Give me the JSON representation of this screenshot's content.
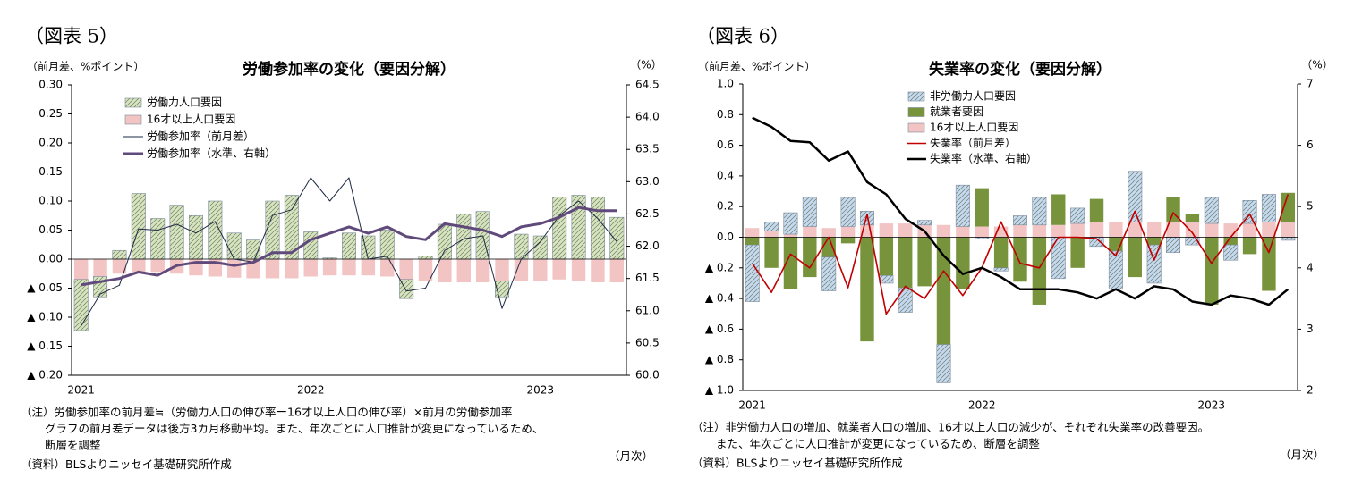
{
  "chart_data": [
    {
      "type": "combo",
      "figure_label": "（図表 5）",
      "title": "労働参加率の変化（要因分解）",
      "y_unit": "（前月差、%ポイント）",
      "y2_unit": "（%）",
      "x_unit": "（月次）",
      "notes": [
        "（注）労働参加率の前月差≒（労働力人口の伸び率ー16才以上人口の伸び率）×前月の労働参加率",
        "グラフの前月差データは後方3カ月移動平均。また、年次ごとに人口推計が変更になっているため、",
        "断層を調整"
      ],
      "source": "（資料）BLSよりニッセイ基礎研究所作成",
      "categories": [
        "2021",
        null,
        null,
        null,
        null,
        null,
        null,
        null,
        null,
        null,
        null,
        null,
        "2022",
        null,
        null,
        null,
        null,
        null,
        null,
        null,
        null,
        null,
        null,
        null,
        "2023",
        null,
        null,
        null,
        null
      ],
      "ylim": [
        -0.2,
        0.3
      ],
      "yticks": [
        {
          "value": 0.3,
          "label": "0.30"
        },
        {
          "value": 0.25,
          "label": "0.25"
        },
        {
          "value": 0.2,
          "label": "0.20"
        },
        {
          "value": 0.15,
          "label": "0.15"
        },
        {
          "value": 0.1,
          "label": "0.10"
        },
        {
          "value": 0.05,
          "label": "0.05"
        },
        {
          "value": 0,
          "label": "0.00"
        },
        {
          "value": -0.05,
          "label": "▲ 0.05"
        },
        {
          "value": -0.1,
          "label": "▲ 0.10"
        },
        {
          "value": -0.15,
          "label": "▲ 0.15"
        },
        {
          "value": -0.2,
          "label": "▲ 0.20"
        }
      ],
      "y2lim": [
        60,
        64.5
      ],
      "y2ticks": [
        64.5,
        {
          "value": 64,
          "label": "64.0"
        },
        63.5,
        {
          "value": 63,
          "label": "63.0"
        },
        62.5,
        {
          "value": 62,
          "label": "62.0"
        },
        61.5,
        {
          "value": 61,
          "label": "61.0"
        },
        60.5,
        {
          "value": 60,
          "label": "60.0"
        }
      ],
      "series": [
        {
          "name": "労働力人口要因",
          "kind": "bar",
          "color": "#d7e4bd",
          "hatch": true,
          "values": [
            -0.088,
            -0.035,
            0.015,
            0.113,
            0.07,
            0.093,
            0.075,
            0.1,
            0.045,
            0.033,
            0.1,
            0.11,
            0.047,
            0.002,
            0.045,
            0.04,
            0.05,
            -0.033,
            0.005,
            0.06,
            0.078,
            0.082,
            -0.027,
            0.043,
            0.04,
            0.107,
            0.11,
            0.107,
            0.072
          ]
        },
        {
          "name": "16才以上人口要因",
          "kind": "bar",
          "color": "#f2c4c4",
          "hatch": false,
          "values": [
            -0.035,
            -0.03,
            -0.025,
            -0.025,
            -0.022,
            -0.025,
            -0.028,
            -0.03,
            -0.032,
            -0.033,
            -0.033,
            -0.033,
            -0.03,
            -0.028,
            -0.028,
            -0.028,
            -0.03,
            -0.035,
            -0.038,
            -0.04,
            -0.04,
            -0.04,
            -0.038,
            -0.038,
            -0.038,
            -0.035,
            -0.038,
            -0.04,
            -0.04
          ]
        },
        {
          "name": "労働参加率（前月差）",
          "kind": "line",
          "color": "#1f2a44",
          "line_width": 1,
          "values": [
            -0.115,
            -0.06,
            -0.045,
            0.052,
            0.05,
            0.06,
            0.045,
            0.065,
            0.0,
            -0.005,
            0.075,
            0.085,
            0.14,
            0.1,
            0.14,
            0.0,
            0.005,
            -0.055,
            -0.05,
            0.015,
            0.035,
            0.04,
            -0.085,
            0.0,
            0.03,
            0.075,
            0.1,
            0.07,
            0.03
          ]
        },
        {
          "name": "労働参加率（水準、右軸）",
          "kind": "line",
          "axis": "y2",
          "color": "#604a7b",
          "line_width": 3,
          "values": [
            61.4,
            61.45,
            61.5,
            61.6,
            61.55,
            61.7,
            61.75,
            61.75,
            61.7,
            61.75,
            61.9,
            61.9,
            62.1,
            62.2,
            62.3,
            62.2,
            62.3,
            62.15,
            62.1,
            62.35,
            62.3,
            62.25,
            62.15,
            62.3,
            62.35,
            62.45,
            62.6,
            62.55,
            62.55
          ]
        }
      ]
    },
    {
      "type": "combo",
      "figure_label": "（図表 6）",
      "title": "失業率の変化（要因分解）",
      "y_unit": "（前月差、%ポイント）",
      "y2_unit": "（%）",
      "x_unit": "（月次）",
      "notes": [
        "（注）非労働力人口の増加、就業者人口の増加、16才以上人口の減少が、それぞれ失業率の改善要因。",
        "また、年次ごとに人口推計が変更になっているため、断層を調整"
      ],
      "source": "（資料）BLSよりニッセイ基礎研究所作成",
      "categories": [
        "2021",
        null,
        null,
        null,
        null,
        null,
        null,
        null,
        null,
        null,
        null,
        null,
        "2022",
        null,
        null,
        null,
        null,
        null,
        null,
        null,
        null,
        null,
        null,
        null,
        "2023",
        null,
        null,
        null,
        null
      ],
      "ylim": [
        -1,
        1
      ],
      "yticks": [
        {
          "value": 1,
          "label": "1.0"
        },
        0.8,
        0.6,
        0.4,
        0.2,
        {
          "value": 0,
          "label": "0.0"
        },
        {
          "value": -0.2,
          "label": "▲ 0.2"
        },
        {
          "value": -0.4,
          "label": "▲ 0.4"
        },
        {
          "value": -0.6,
          "label": "▲ 0.6"
        },
        {
          "value": -0.8,
          "label": "▲ 0.8"
        },
        {
          "value": -1,
          "label": "▲ 1.0"
        }
      ],
      "y2lim": [
        2,
        7
      ],
      "y2ticks": [
        7,
        6,
        5,
        4,
        3,
        2
      ],
      "series": [
        {
          "name": "非労働力人口要因",
          "kind": "bar",
          "color": "#c5d9f1",
          "hatch": true,
          "values": [
            -0.37,
            0.06,
            0.14,
            0.19,
            -0.22,
            0.19,
            0.09,
            -0.05,
            -0.16,
            0.03,
            -0.25,
            0.27,
            -0.01,
            -0.02,
            0.06,
            0.18,
            -0.27,
            0.1,
            -0.06,
            -0.25,
            0.33,
            -0.25,
            -0.1,
            -0.05,
            0.17,
            -0.1,
            0.15,
            0.18,
            -0.02
          ]
        },
        {
          "name": "就業者要因",
          "kind": "bar",
          "color": "#77933c",
          "hatch": false,
          "values": [
            -0.05,
            -0.2,
            -0.34,
            -0.26,
            -0.13,
            -0.04,
            -0.68,
            -0.25,
            -0.33,
            -0.32,
            -0.7,
            -0.34,
            0.25,
            -0.2,
            -0.29,
            -0.44,
            0.2,
            -0.2,
            0.15,
            -0.09,
            -0.26,
            -0.05,
            0.16,
            0.05,
            -0.44,
            -0.05,
            -0.11,
            -0.35,
            0.19
          ]
        },
        {
          "name": "16才以上人口要因",
          "kind": "bar",
          "color": "#f2c4c4",
          "hatch": false,
          "values": [
            0.06,
            0.04,
            0.02,
            0.07,
            0.06,
            0.07,
            0.08,
            0.09,
            0.09,
            0.08,
            0.08,
            0.07,
            0.07,
            0.07,
            0.08,
            0.08,
            0.08,
            0.09,
            0.1,
            0.1,
            0.1,
            0.1,
            0.1,
            0.1,
            0.09,
            0.09,
            0.09,
            0.1,
            0.1
          ]
        },
        {
          "name": "失業率（前月差）",
          "kind": "line",
          "color": "#c00000",
          "line_width": 1.6,
          "values": [
            -0.17,
            -0.36,
            -0.11,
            -0.2,
            0.0,
            -0.33,
            0.15,
            -0.5,
            -0.32,
            -0.4,
            -0.22,
            -0.38,
            -0.2,
            0.1,
            -0.17,
            -0.2,
            0.0,
            0.0,
            -0.01,
            -0.12,
            0.17,
            -0.15,
            0.16,
            0.03,
            -0.17,
            0.0,
            0.15,
            -0.1,
            0.28
          ]
        },
        {
          "name": "失業率（水準、右軸）",
          "kind": "line",
          "axis": "y2",
          "color": "#000000",
          "line_width": 2.5,
          "values": [
            6.45,
            6.3,
            6.07,
            6.05,
            5.75,
            5.9,
            5.4,
            5.2,
            4.8,
            4.6,
            4.2,
            3.9,
            4.0,
            3.85,
            3.65,
            3.65,
            3.65,
            3.6,
            3.5,
            3.65,
            3.5,
            3.7,
            3.65,
            3.45,
            3.4,
            3.55,
            3.5,
            3.4,
            3.65
          ]
        }
      ]
    }
  ]
}
